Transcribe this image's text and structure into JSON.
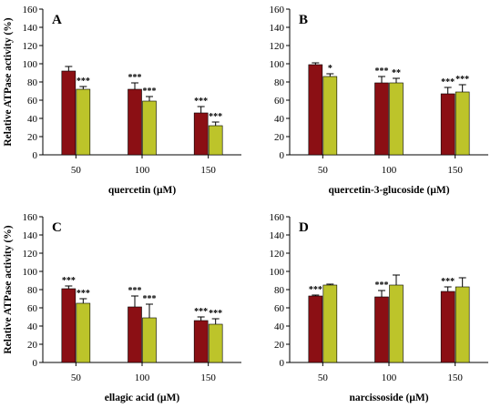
{
  "colors": {
    "series_a": "#8b0f14",
    "series_b": "#bdc42a",
    "axis": "#000000"
  },
  "ylabel": "Relative ATPase activity (%)",
  "chart_data": [
    {
      "type": "bar",
      "panel": "A",
      "xlabel": "quercetin (μM)",
      "categories": [
        "50",
        "100",
        "150"
      ],
      "ylim": [
        0,
        160
      ],
      "yticks": [
        "0",
        "20",
        "40",
        "60",
        "80",
        "100",
        "120",
        "140",
        "160"
      ],
      "series": [
        {
          "values": [
            92,
            72,
            46
          ],
          "errors": [
            5,
            7,
            7
          ],
          "sig": [
            "",
            "***",
            "***"
          ]
        },
        {
          "values": [
            72,
            59,
            32
          ],
          "errors": [
            3,
            5,
            4
          ],
          "sig": [
            "***",
            "***",
            "***"
          ]
        }
      ]
    },
    {
      "type": "bar",
      "panel": "B",
      "xlabel": "quercetin-3-glucoside (μM)",
      "categories": [
        "50",
        "100",
        "150"
      ],
      "ylim": [
        0,
        160
      ],
      "yticks": [
        "0",
        "20",
        "40",
        "60",
        "80",
        "100",
        "120",
        "140",
        "160"
      ],
      "series": [
        {
          "values": [
            99,
            79,
            67
          ],
          "errors": [
            2,
            7,
            7
          ],
          "sig": [
            "",
            "***",
            "***"
          ]
        },
        {
          "values": [
            86,
            79,
            69
          ],
          "errors": [
            3,
            5,
            8
          ],
          "sig": [
            "*",
            "**",
            "***"
          ]
        }
      ]
    },
    {
      "type": "bar",
      "panel": "C",
      "xlabel": "ellagic acid (μM)",
      "categories": [
        "50",
        "100",
        "150"
      ],
      "ylim": [
        0,
        160
      ],
      "yticks": [
        "0",
        "20",
        "40",
        "60",
        "80",
        "100",
        "120",
        "140",
        "160"
      ],
      "series": [
        {
          "values": [
            81,
            61,
            46
          ],
          "errors": [
            3,
            12,
            4
          ],
          "sig": [
            "***",
            "***",
            "***"
          ]
        },
        {
          "values": [
            65,
            49,
            42
          ],
          "errors": [
            5,
            15,
            6
          ],
          "sig": [
            "***",
            "***",
            "***"
          ]
        }
      ]
    },
    {
      "type": "bar",
      "panel": "D",
      "xlabel": "narcissoside (μM)",
      "categories": [
        "50",
        "100",
        "150"
      ],
      "ylim": [
        0,
        160
      ],
      "yticks": [
        "0",
        "20",
        "40",
        "60",
        "80",
        "100",
        "120",
        "140",
        "160"
      ],
      "series": [
        {
          "values": [
            73,
            72,
            78
          ],
          "errors": [
            1,
            7,
            5
          ],
          "sig": [
            "***",
            "***",
            "***"
          ]
        },
        {
          "values": [
            85,
            85,
            83
          ],
          "errors": [
            1,
            11,
            10
          ],
          "sig": [
            "",
            "",
            ""
          ]
        }
      ]
    }
  ]
}
